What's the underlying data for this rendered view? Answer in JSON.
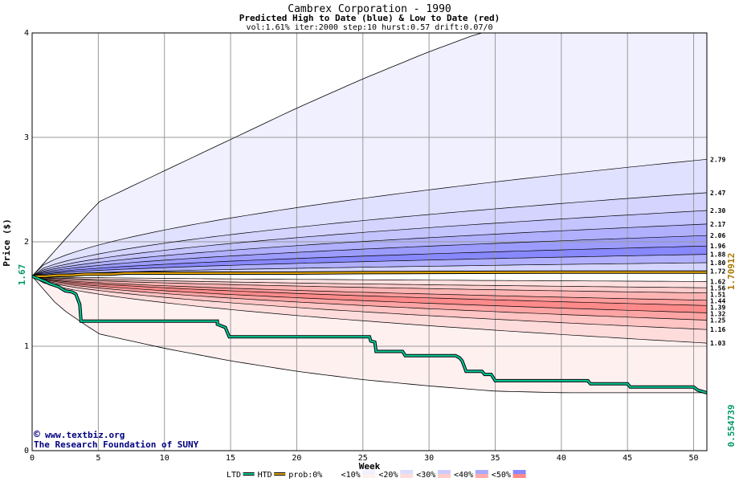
{
  "chart_data": {
    "type": "area",
    "title": "Cambrex Corporation - 1990",
    "subtitle": "Predicted High to Date (blue) &  Low to Date (red)",
    "params": "vol:1.61% iter:2000 step:10 hurst:0.57 drift:0.07/0",
    "xlabel": "Week",
    "ylabel": "Price ($)",
    "xlim": [
      0,
      51
    ],
    "ylim": [
      0,
      4
    ],
    "x_ticks": [
      0,
      5,
      10,
      15,
      20,
      25,
      30,
      35,
      40,
      45,
      50
    ],
    "y_ticks": [
      0,
      1,
      2,
      3,
      4
    ],
    "grid": true,
    "start_price": 1.67,
    "start_price_label": "1.67",
    "end_high_label": "1.70912",
    "end_low_label": "0.554739",
    "right_labels": [
      "2.79",
      "2.47",
      "2.30",
      "2.17",
      "2.06",
      "1.96",
      "1.88",
      "1.80",
      "1.72",
      "1.62",
      "1.56",
      "1.51",
      "1.44",
      "1.39",
      "1.32",
      "1.25",
      "1.16",
      "1.03"
    ],
    "high_envelope": [
      [
        0,
        1.67
      ],
      [
        5,
        2.38
      ],
      [
        10,
        2.68
      ],
      [
        15,
        2.98
      ],
      [
        20,
        3.28
      ],
      [
        25,
        3.56
      ],
      [
        30,
        3.82
      ],
      [
        33,
        3.96
      ],
      [
        33.7,
        4.0
      ]
    ],
    "low_envelope": [
      [
        0,
        1.67
      ],
      [
        2,
        1.38
      ],
      [
        5,
        1.12
      ],
      [
        10,
        0.98
      ],
      [
        15,
        0.86
      ],
      [
        20,
        0.76
      ],
      [
        25,
        0.68
      ],
      [
        30,
        0.62
      ],
      [
        35,
        0.57
      ],
      [
        40,
        0.555
      ],
      [
        50,
        0.555
      ],
      [
        51,
        0.555
      ]
    ],
    "high_bands": [
      2.79,
      2.47,
      2.3,
      2.17,
      2.06,
      1.96,
      1.88,
      1.8,
      1.72
    ],
    "low_bands": [
      1.62,
      1.56,
      1.51,
      1.44,
      1.39,
      1.32,
      1.25,
      1.16,
      1.03
    ],
    "htd_series": {
      "name": "HTD",
      "points": [
        [
          0,
          1.67
        ],
        [
          1,
          1.67
        ],
        [
          2,
          1.68
        ],
        [
          3,
          1.68
        ],
        [
          4,
          1.69
        ],
        [
          6,
          1.69
        ],
        [
          7,
          1.7
        ],
        [
          10,
          1.7
        ],
        [
          15,
          1.7
        ],
        [
          20,
          1.7
        ],
        [
          25,
          1.705
        ],
        [
          30,
          1.707
        ],
        [
          40,
          1.709
        ],
        [
          51,
          1.70912
        ]
      ]
    },
    "ltd_series": {
      "name": "LTD",
      "points": [
        [
          0,
          1.67
        ],
        [
          1,
          1.62
        ],
        [
          1.3,
          1.6
        ],
        [
          2,
          1.57
        ],
        [
          2.5,
          1.53
        ],
        [
          3,
          1.52
        ],
        [
          3.3,
          1.5
        ],
        [
          3.6,
          1.4
        ],
        [
          3.7,
          1.24
        ],
        [
          14,
          1.24
        ],
        [
          14,
          1.21
        ],
        [
          14.6,
          1.18
        ],
        [
          14.9,
          1.09
        ],
        [
          25.5,
          1.09
        ],
        [
          25.6,
          1.05
        ],
        [
          25.9,
          1.04
        ],
        [
          26,
          0.95
        ],
        [
          28,
          0.95
        ],
        [
          28.2,
          0.91
        ],
        [
          32,
          0.91
        ],
        [
          32.3,
          0.89
        ],
        [
          32.5,
          0.86
        ],
        [
          32.8,
          0.76
        ],
        [
          34,
          0.76
        ],
        [
          34.2,
          0.73
        ],
        [
          34.7,
          0.73
        ],
        [
          35,
          0.67
        ],
        [
          42,
          0.67
        ],
        [
          42.2,
          0.64
        ],
        [
          45,
          0.64
        ],
        [
          45.2,
          0.61
        ],
        [
          50,
          0.61
        ],
        [
          50.3,
          0.58
        ],
        [
          51,
          0.554739
        ]
      ]
    },
    "legend": [
      {
        "label": "LTD",
        "color": "#00cc99"
      },
      {
        "label": "HTD",
        "color": "#e6a800"
      },
      {
        "label": "prob:0%",
        "color": "#ffffff"
      },
      {
        "label": "<10%",
        "color": "#f0f0ff"
      },
      {
        "label": "<20%",
        "color": "#dcdcff"
      },
      {
        "label": "<30%",
        "color": "#ccccff"
      },
      {
        "label": "<40%",
        "color": "#aaaaff"
      },
      {
        "label": "<50%",
        "color": "#8888ff"
      }
    ],
    "legend_low_colors": [
      "#ffffff",
      "#fff0f0",
      "#ffdcdc",
      "#ffcccc",
      "#ffaaaa",
      "#ff8888"
    ]
  },
  "watermark": {
    "line1": "www.textbiz.org",
    "line2": "The Research Foundation of SUNY",
    "copyright_symbol": "©"
  },
  "colors": {
    "axis": "#000000",
    "grid": "#999999",
    "ltd": "#00cc99",
    "htd": "#e6a800",
    "low_label": "#009966",
    "high_label": "#aa7700",
    "watermark": "#000080"
  }
}
